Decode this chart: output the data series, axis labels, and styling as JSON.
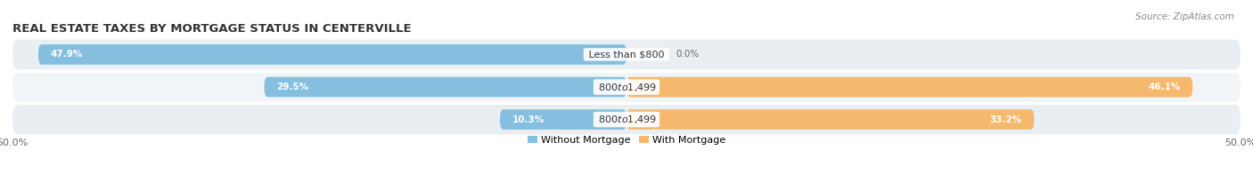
{
  "title": "REAL ESTATE TAXES BY MORTGAGE STATUS IN CENTERVILLE",
  "source": "Source: ZipAtlas.com",
  "rows": [
    {
      "label": "Less than $800",
      "without_mortgage": 47.9,
      "with_mortgage": 0.0
    },
    {
      "label": "$800 to $1,499",
      "without_mortgage": 29.5,
      "with_mortgage": 46.1
    },
    {
      "label": "$800 to $1,499",
      "without_mortgage": 10.3,
      "with_mortgage": 33.2
    }
  ],
  "xlim": [
    -50.0,
    50.0
  ],
  "xticklabels_left": "50.0%",
  "xticklabels_right": "50.0%",
  "color_without": "#85bfe0",
  "color_with": "#f5b96e",
  "bar_height": 0.62,
  "row_bg_color": "#e9eef3",
  "row_bg_color2": "#f2f5f8",
  "bg_color": "#f7f9fb",
  "legend_label_without": "Without Mortgage",
  "legend_label_with": "With Mortgage",
  "title_fontsize": 9.5,
  "label_fontsize": 8,
  "tick_fontsize": 8,
  "source_fontsize": 7.5,
  "pct_fontsize": 7.5
}
